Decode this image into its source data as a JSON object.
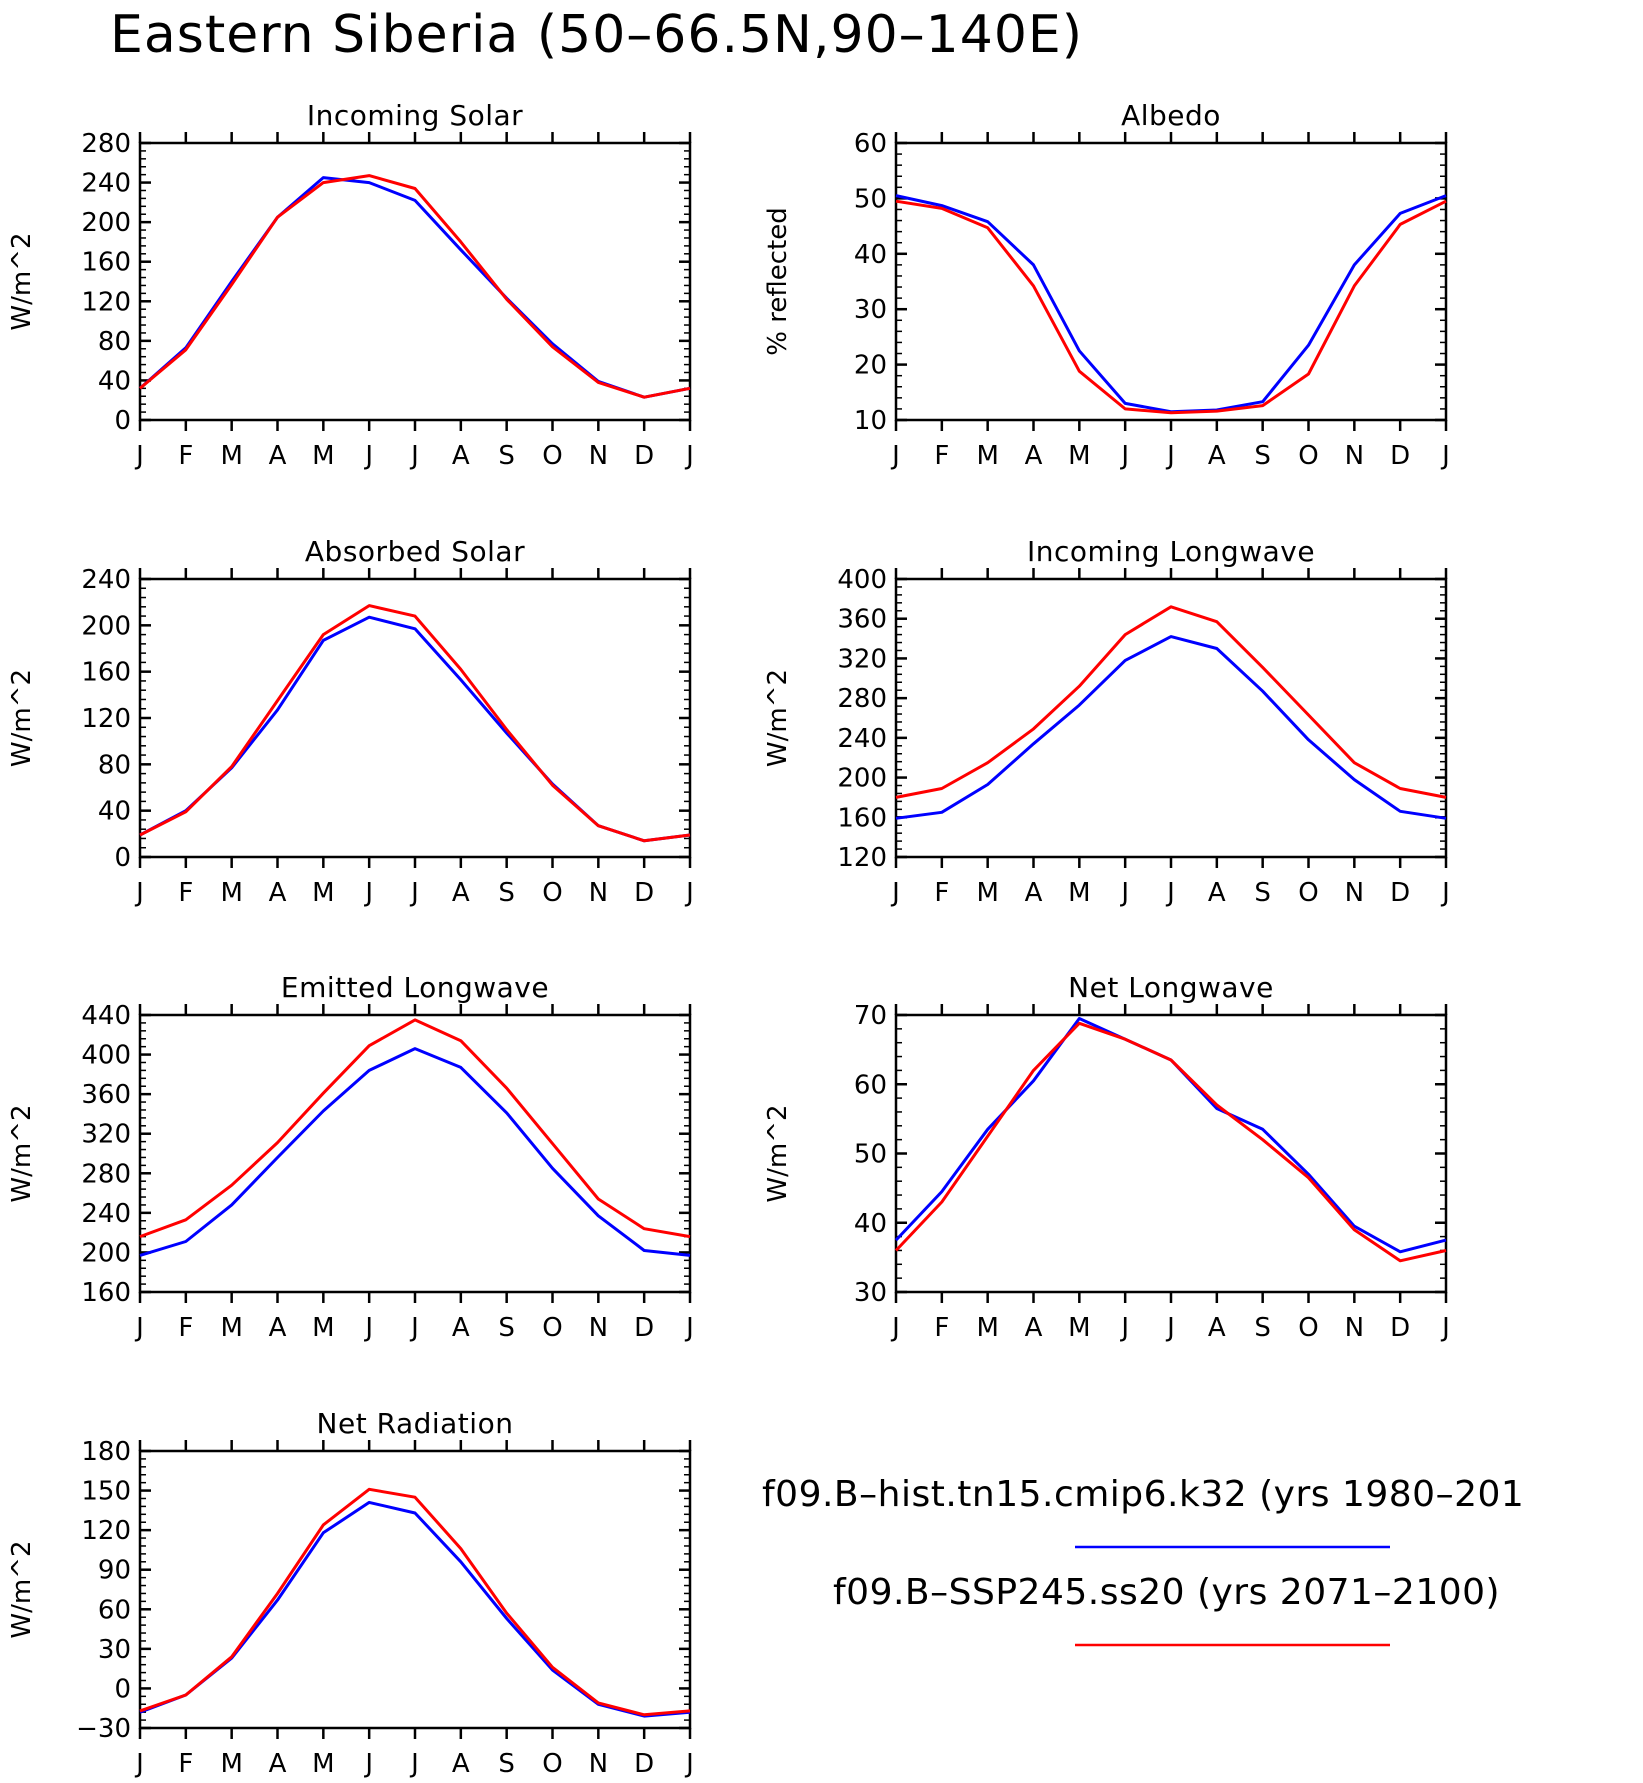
{
  "title": "Eastern Siberia (50–66.5N,90–140E)",
  "colors": {
    "hist": "#0000ff",
    "ssp": "#ff0000"
  },
  "legend": [
    {
      "label": "f09.B–hist.tn15.cmip6.k32 (yrs 1980–201",
      "color": "#0000ff"
    },
    {
      "label": "f09.B–SSP245.ss20 (yrs 2071–2100)",
      "color": "#ff0000"
    }
  ],
  "chart_data": [
    {
      "type": "line",
      "title": "Incoming Solar",
      "ylabel": "W/m^2",
      "x": [
        "J",
        "F",
        "M",
        "A",
        "M",
        "J",
        "J",
        "A",
        "S",
        "O",
        "N",
        "D",
        "J"
      ],
      "ylim": [
        0,
        280
      ],
      "yticks": [
        0,
        40,
        80,
        120,
        160,
        200,
        240,
        280
      ],
      "series": [
        {
          "values": [
            32,
            73,
            140,
            205,
            245,
            240,
            222,
            172,
            123,
            77,
            39,
            23,
            32
          ]
        },
        {
          "values": [
            32,
            71,
            137,
            205,
            240,
            247,
            234,
            180,
            122,
            74,
            38,
            23,
            32
          ]
        }
      ]
    },
    {
      "type": "line",
      "title": "Albedo",
      "ylabel": "% reflected",
      "x": [
        "J",
        "F",
        "M",
        "A",
        "M",
        "J",
        "J",
        "A",
        "S",
        "O",
        "N",
        "D",
        "J"
      ],
      "ylim": [
        10,
        60
      ],
      "yticks": [
        10,
        20,
        30,
        40,
        50,
        60
      ],
      "series": [
        {
          "values": [
            50.5,
            48.7,
            45.8,
            38.0,
            22.5,
            13.0,
            11.5,
            11.8,
            13.3,
            23.5,
            38.0,
            47.3,
            50.5
          ]
        },
        {
          "values": [
            49.5,
            48.2,
            44.7,
            34.2,
            18.8,
            12.0,
            11.3,
            11.6,
            12.6,
            18.3,
            34.2,
            45.3,
            49.5
          ]
        }
      ]
    },
    {
      "type": "line",
      "title": "Absorbed Solar",
      "ylabel": "W/m^2",
      "x": [
        "J",
        "F",
        "M",
        "A",
        "M",
        "J",
        "J",
        "A",
        "S",
        "O",
        "N",
        "D",
        "J"
      ],
      "ylim": [
        0,
        240
      ],
      "yticks": [
        0,
        40,
        80,
        120,
        160,
        200,
        240
      ],
      "series": [
        {
          "values": [
            19,
            40,
            77,
            127,
            187,
            207,
            197,
            153,
            107,
            63,
            27,
            14,
            19
          ]
        },
        {
          "values": [
            19,
            39,
            78,
            135,
            192,
            217,
            208,
            162,
            110,
            62,
            27,
            14,
            19
          ]
        }
      ]
    },
    {
      "type": "line",
      "title": "Incoming Longwave",
      "ylabel": "W/m^2",
      "x": [
        "J",
        "F",
        "M",
        "A",
        "M",
        "J",
        "J",
        "A",
        "S",
        "O",
        "N",
        "D",
        "J"
      ],
      "ylim": [
        120,
        400
      ],
      "yticks": [
        120,
        160,
        200,
        240,
        280,
        320,
        360,
        400
      ],
      "series": [
        {
          "values": [
            159,
            165,
            193,
            234,
            273,
            318,
            342,
            330,
            287,
            238,
            198,
            166,
            159
          ]
        },
        {
          "values": [
            180,
            189,
            215,
            249,
            292,
            344,
            372,
            357,
            311,
            263,
            215,
            189,
            180
          ]
        }
      ]
    },
    {
      "type": "line",
      "title": "Emitted Longwave",
      "ylabel": "W/m^2",
      "x": [
        "J",
        "F",
        "M",
        "A",
        "M",
        "J",
        "J",
        "A",
        "S",
        "O",
        "N",
        "D",
        "J"
      ],
      "ylim": [
        160,
        440
      ],
      "yticks": [
        160,
        200,
        240,
        280,
        320,
        360,
        400,
        440
      ],
      "series": [
        {
          "values": [
            197,
            211,
            248,
            296,
            343,
            384,
            406,
            387,
            341,
            285,
            237,
            202,
            197
          ]
        },
        {
          "values": [
            216,
            233,
            268,
            311,
            361,
            409,
            435,
            414,
            366,
            310,
            254,
            224,
            216
          ]
        }
      ]
    },
    {
      "type": "line",
      "title": "Net Longwave",
      "ylabel": "W/m^2",
      "x": [
        "J",
        "F",
        "M",
        "A",
        "M",
        "J",
        "J",
        "A",
        "S",
        "O",
        "N",
        "D",
        "J"
      ],
      "ylim": [
        30,
        70
      ],
      "yticks": [
        30,
        40,
        50,
        60,
        70
      ],
      "series": [
        {
          "values": [
            37.5,
            44.5,
            53.5,
            60.5,
            69.5,
            66.5,
            63.5,
            56.5,
            53.5,
            47.0,
            39.5,
            35.8,
            37.5
          ]
        },
        {
          "values": [
            36.0,
            43.0,
            52.5,
            62.0,
            68.8,
            66.5,
            63.5,
            57.0,
            52.0,
            46.5,
            39.0,
            34.5,
            36.0
          ]
        }
      ]
    },
    {
      "type": "line",
      "title": "Net Radiation",
      "ylabel": "W/m^2",
      "x": [
        "J",
        "F",
        "M",
        "A",
        "M",
        "J",
        "J",
        "A",
        "S",
        "O",
        "N",
        "D",
        "J"
      ],
      "ylim": [
        -30,
        180
      ],
      "yticks": [
        -30,
        0,
        30,
        60,
        90,
        120,
        150,
        180
      ],
      "series": [
        {
          "values": [
            -18,
            -5,
            23,
            67,
            118,
            141,
            133,
            96,
            53,
            14,
            -12,
            -21,
            -18
          ]
        },
        {
          "values": [
            -17,
            -5,
            24,
            72,
            124,
            151,
            145,
            106,
            57,
            16,
            -11,
            -20,
            -17
          ]
        }
      ]
    }
  ]
}
